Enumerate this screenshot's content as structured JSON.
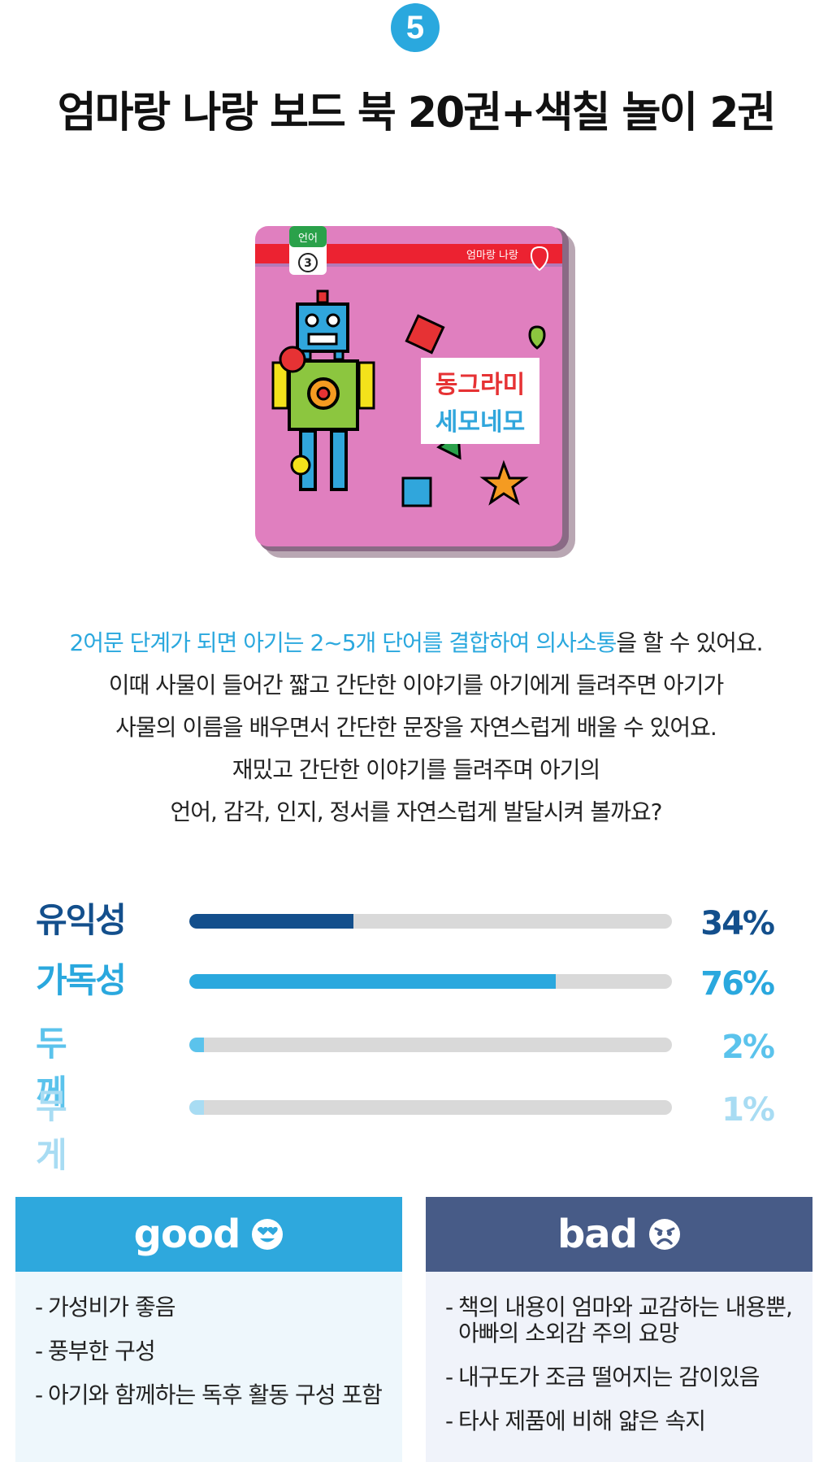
{
  "header": {
    "number": "5",
    "title": "엄마랑 나랑 보드 북 20권+색칠 놀이 2권"
  },
  "book": {
    "tab_label": "언어",
    "tab_number": "3",
    "series_label": "엄마랑 나랑",
    "title_line1": "동그라미",
    "title_line2": "세모네모"
  },
  "description": {
    "line1_highlight": "2어문 단계가 되면 아기는 2~5개 단어를 결합하여 의사소통",
    "line1_rest": "을 할 수 있어요.",
    "line2": "이때 사물이 들어간 짧고 간단한 이야기를 아기에게 들려주면 아기가",
    "line3": "사물의 이름을 배우면서 간단한 문장을 자연스럽게 배울 수 있어요.",
    "line4": "재밌고 간단한 이야기를 들려주며 아기의",
    "line5": "언어, 감각, 인지, 정서를 자연스럽게 발달시켜 볼까요?"
  },
  "ratings": [
    {
      "label": "유익성",
      "percent_text": "34%",
      "value": 34,
      "color": "#134f8c"
    },
    {
      "label": "가독성",
      "percent_text": "76%",
      "value": 76,
      "color": "#2aa8de"
    },
    {
      "label": "두께",
      "percent_text": "2%",
      "value": 2,
      "color": "#5bc3ec"
    },
    {
      "label": "무게",
      "percent_text": "1%",
      "value": 1,
      "color": "#a8dcf3"
    }
  ],
  "good": {
    "title": "good",
    "icon": "heart-eyes-face-icon",
    "items": [
      "가성비가 좋음",
      "풍부한 구성",
      "아기와 함께하는 독후 활동 구성 포함"
    ]
  },
  "bad": {
    "title": "bad",
    "icon": "sad-face-icon",
    "items": [
      "책의 내용이 엄마와 교감하는 내용뿐,",
      "아빠의 소외감 주의 요망",
      "내구도가 조금 떨어지는 감이있음",
      "타사 제품에 비해 얇은 속지"
    ]
  },
  "colors": {
    "accent": "#2aa8de",
    "navy": "#134f8c",
    "good_header": "#2ea8dd",
    "bad_header": "#475b87"
  }
}
